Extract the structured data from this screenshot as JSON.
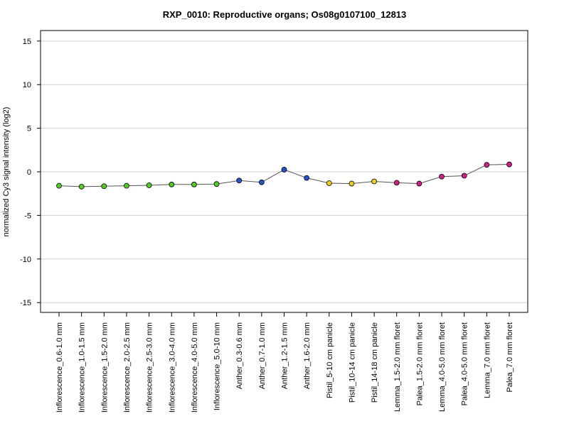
{
  "chart_data": {
    "type": "line",
    "title": "RXP_0010: Reproductive organs; Os08g0107100_12813",
    "xlabel": "",
    "ylabel": "normalized Cy3 signal intensity (log2)",
    "ylim": [
      -16.2,
      16.2
    ],
    "yticks": [
      -15,
      -10,
      -5,
      0,
      5,
      10,
      15
    ],
    "grid": "horizontal",
    "line_color": "#555555",
    "categories": [
      "Inflorescence_0.6-1.0 mm",
      "Inflorescence_1.0-1.5 mm",
      "Inflorescence_1.5-2.0 mm",
      "Inflorescence_2.0-2.5 mm",
      "Inflorescence_2.5-3.0 mm",
      "Inflorescence_3.0-4.0 mm",
      "Inflorescence_4.0-5.0 mm",
      "Inflorescence_5.0-10 mm",
      "Anther_0.3-0.6 mm",
      "Anther_0.7-1.0 mm",
      "Anther_1.2-1.5 mm",
      "Anther_1.6-2.0 mm",
      "Pistil_5-10 cm panicle",
      "Pistil_10-14 cm panicle",
      "Pistil_14-18 cm panicle",
      "Lemma_1.5-2.0 mm floret",
      "Palea_1.5-2.0 mm floret",
      "Lemma_4.0-5.0 mm floret",
      "Palea_4.0-5.0 mm floret",
      "Lemma_7.0 mm floret",
      "Palea_7.0 mm floret"
    ],
    "values": [
      -1.6,
      -1.7,
      -1.65,
      -1.6,
      -1.55,
      -1.45,
      -1.45,
      -1.4,
      -1.0,
      -1.2,
      0.25,
      -0.7,
      -1.3,
      -1.35,
      -1.1,
      -1.25,
      -1.35,
      -0.55,
      -0.45,
      0.8,
      0.85
    ],
    "point_colors": [
      "#55cc22",
      "#55cc22",
      "#55cc22",
      "#55cc22",
      "#55cc22",
      "#55cc22",
      "#55cc22",
      "#55cc22",
      "#2255cc",
      "#2255cc",
      "#2255cc",
      "#2255cc",
      "#eecc22",
      "#eecc22",
      "#eecc22",
      "#cc2288",
      "#cc2288",
      "#cc2288",
      "#cc2288",
      "#cc2288",
      "#cc2288"
    ]
  }
}
